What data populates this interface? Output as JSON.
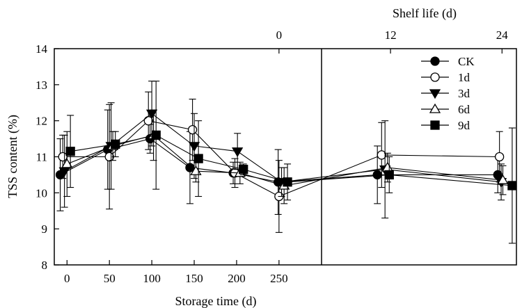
{
  "chart_data": {
    "type": "line",
    "xlabel": "Storage time (d)",
    "x2label": "Shelf life (d)",
    "ylabel": "TSS content (%)",
    "ylim": [
      8,
      14
    ],
    "yticks": [
      "8",
      "9",
      "10",
      "11",
      "12",
      "13",
      "14"
    ],
    "xticks": [
      "0",
      "50",
      "100",
      "150",
      "200",
      "250"
    ],
    "x2ticks": [
      "0",
      "12",
      "24"
    ],
    "x2_zero_at_storage_day": 250,
    "x2_day24_at_storage_day": 513,
    "xlim": [
      -15,
      530
    ],
    "grid": false,
    "legend_position": "top-right",
    "series": [
      {
        "name": "CK",
        "marker": "circle-filled",
        "points": [
          {
            "x": -8,
            "y": 10.5,
            "err": 1.0
          },
          {
            "x": 48,
            "y": 11.2,
            "err": 1.1
          },
          {
            "x": 98,
            "y": 11.5,
            "err": 0.4
          },
          {
            "x": 145,
            "y": 10.7,
            "err": 1.0
          },
          {
            "x": 196,
            "y": 10.55,
            "err": 0.3
          },
          {
            "x": 249,
            "y": 10.3,
            "err": 0.9
          },
          {
            "x": 366,
            "y": 10.5,
            "err": 0.8
          },
          {
            "x": 508,
            "y": 10.5,
            "err": 0.5
          }
        ]
      },
      {
        "name": "1d",
        "marker": "circle-open",
        "points": [
          {
            "x": -5,
            "y": 11.0,
            "err": 0.6
          },
          {
            "x": 50,
            "y": 11.0,
            "err": 1.45
          },
          {
            "x": 96,
            "y": 12.0,
            "err": 0.8
          },
          {
            "x": 148,
            "y": 11.75,
            "err": 0.85
          },
          {
            "x": 198,
            "y": 10.55,
            "err": 0.4
          },
          {
            "x": 250,
            "y": 9.9,
            "err": 1.0
          },
          {
            "x": 371,
            "y": 11.05,
            "err": 0.9
          },
          {
            "x": 510,
            "y": 11.0,
            "err": 0.7
          }
        ]
      },
      {
        "name": "3d",
        "marker": "triangle-down-filled",
        "points": [
          {
            "x": -3,
            "y": 10.6,
            "err": 1.0
          },
          {
            "x": 52,
            "y": 11.3,
            "err": 1.2
          },
          {
            "x": 100,
            "y": 12.2,
            "err": 0.9
          },
          {
            "x": 150,
            "y": 11.3,
            "err": 0.9
          },
          {
            "x": 201,
            "y": 11.15,
            "err": 0.5
          },
          {
            "x": 253,
            "y": 10.3,
            "err": 0.4
          },
          {
            "x": 375,
            "y": 10.65,
            "err": 1.35
          },
          {
            "x": 512,
            "y": 10.3,
            "err": 0.5
          }
        ]
      },
      {
        "name": "6d",
        "marker": "triangle-up-open",
        "points": [
          {
            "x": 0,
            "y": 10.8,
            "err": 0.9
          },
          {
            "x": 54,
            "y": 11.3,
            "err": 0.4
          },
          {
            "x": 102,
            "y": 11.6,
            "err": 0.7
          },
          {
            "x": 152,
            "y": 10.6,
            "err": 0.3
          },
          {
            "x": 204,
            "y": 10.55,
            "err": 0.3
          },
          {
            "x": 256,
            "y": 10.2,
            "err": 0.5
          },
          {
            "x": 378,
            "y": 10.7,
            "err": 0.4
          },
          {
            "x": 514,
            "y": 10.35,
            "err": 0.4
          }
        ]
      },
      {
        "name": "9d",
        "marker": "square-filled",
        "points": [
          {
            "x": 4,
            "y": 11.15,
            "err": 1.0
          },
          {
            "x": 57,
            "y": 11.35,
            "err": 0.35
          },
          {
            "x": 105,
            "y": 11.6,
            "err": 1.5
          },
          {
            "x": 155,
            "y": 10.95,
            "err": 1.05
          },
          {
            "x": 208,
            "y": 10.65,
            "err": 0.15
          },
          {
            "x": 260,
            "y": 10.3,
            "err": 0.5
          },
          {
            "x": 380,
            "y": 10.5,
            "err": 0.5
          },
          {
            "x": 525,
            "y": 10.2,
            "err": 1.6
          }
        ]
      }
    ]
  }
}
